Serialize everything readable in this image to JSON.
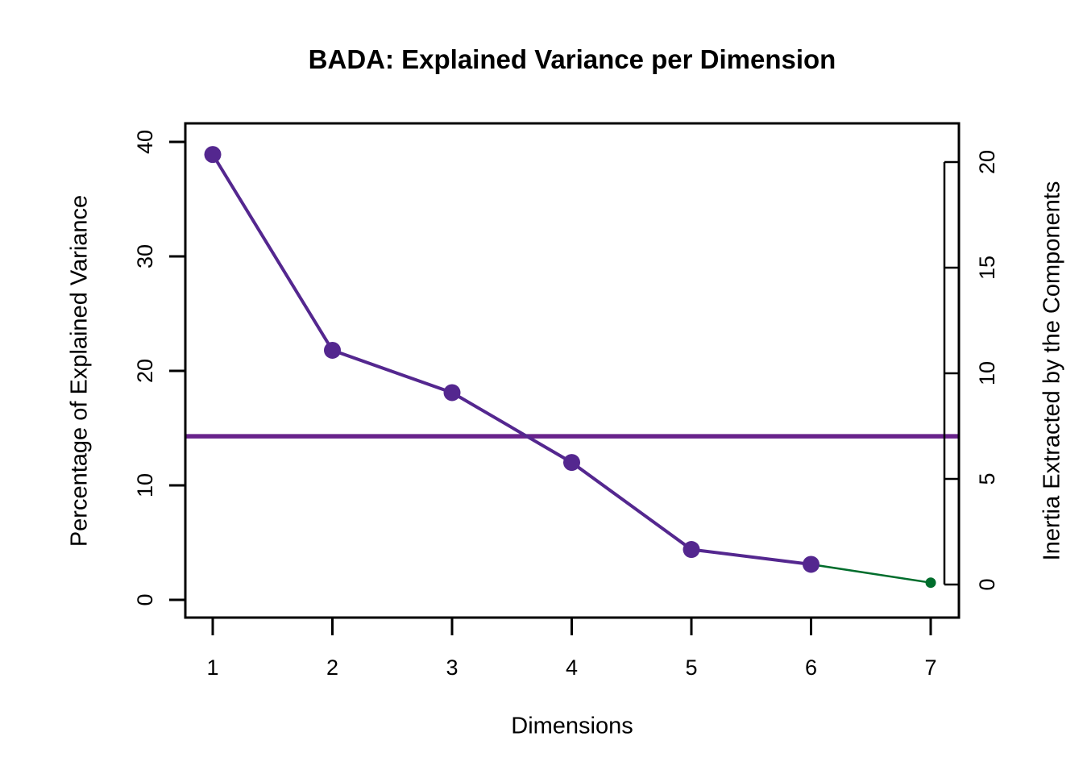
{
  "chart_data": {
    "type": "line",
    "title": "BADA: Explained Variance per Dimension",
    "xlabel": "Dimensions",
    "ylabel_left": "Percentage of Explained Variance",
    "ylabel_right": "Inertia Extracted by the Components",
    "x": [
      1,
      2,
      3,
      4,
      5,
      6,
      7
    ],
    "series": [
      {
        "name": "percentage-of-explained-variance",
        "values": [
          38.9,
          21.8,
          18.1,
          12.0,
          4.4,
          3.1,
          1.5
        ]
      }
    ],
    "significant_dims": [
      1,
      2,
      3,
      4,
      5,
      6
    ],
    "nonsignificant_dims": [
      7
    ],
    "average_line_pct": 14.29,
    "x_ticks": [
      1,
      2,
      3,
      4,
      5,
      6,
      7
    ],
    "left_ticks": [
      0,
      10,
      20,
      30,
      40
    ],
    "right_ticks": [
      0,
      5,
      10,
      15,
      20
    ],
    "ylim_left": [
      0,
      40
    ],
    "ylim_right": [
      0,
      20
    ],
    "grid": false,
    "legend": "none",
    "colors": {
      "significant": "#54278F",
      "nonsignificant": "#006D2C",
      "average_line": "#68228B",
      "axis": "#000000",
      "background": "#FFFFFF"
    }
  }
}
